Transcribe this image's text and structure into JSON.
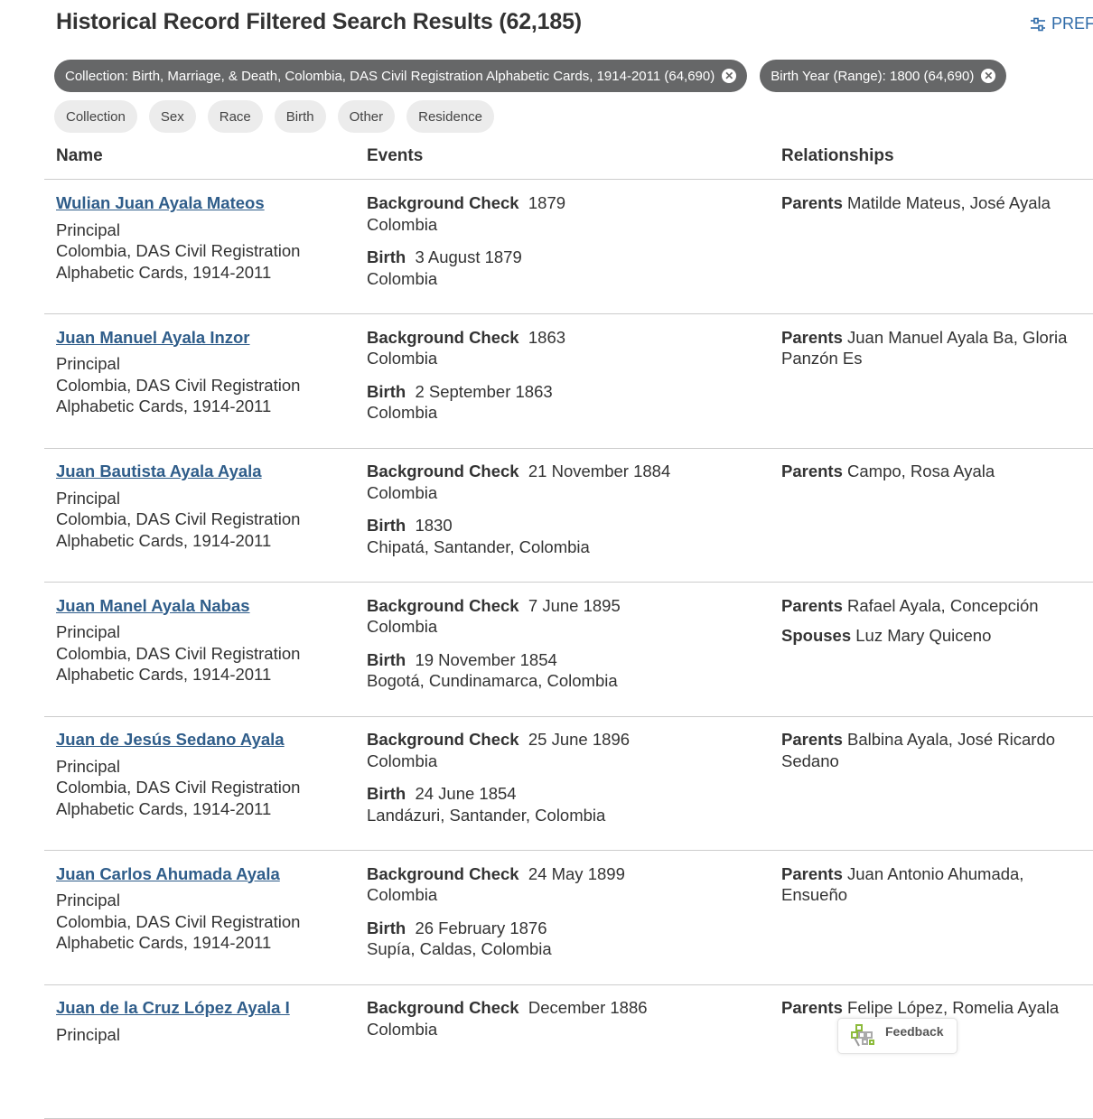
{
  "header": {
    "title": "Historical Record Filtered Search Results (62,185)",
    "prefs_label": "PREFI"
  },
  "active_filters": [
    {
      "label": "Collection: Birth, Marriage, & Death, Colombia, DAS Civil Registration Alphabetic Cards, 1914-2011 (64,690)"
    },
    {
      "label": "Birth Year (Range): 1800 (64,690)"
    }
  ],
  "filter_buttons": [
    "Collection",
    "Sex",
    "Race",
    "Birth",
    "Other",
    "Residence"
  ],
  "columns": {
    "name": "Name",
    "events": "Events",
    "relationships": "Relationships"
  },
  "results": [
    {
      "name": "Wulian Juan Ayala Mateos",
      "role": "Principal",
      "collection": "Colombia, DAS Civil Registration Alphabetic Cards, 1914-2011",
      "events": [
        {
          "type": "Background Check",
          "date": "1879",
          "place": "Colombia"
        },
        {
          "type": "Birth",
          "date": "3 August 1879",
          "place": "Colombia"
        }
      ],
      "relationships": [
        {
          "type": "Parents",
          "names": "Matilde Mateus, José Ayala"
        }
      ]
    },
    {
      "name": "Juan Manuel Ayala Inzor",
      "role": "Principal",
      "collection": "Colombia, DAS Civil Registration Alphabetic Cards, 1914-2011",
      "events": [
        {
          "type": "Background Check",
          "date": "1863",
          "place": "Colombia"
        },
        {
          "type": "Birth",
          "date": "2 September 1863",
          "place": "Colombia"
        }
      ],
      "relationships": [
        {
          "type": "Parents",
          "names": "Juan Manuel Ayala Ba, Gloria Panzón Es"
        }
      ]
    },
    {
      "name": "Juan Bautista Ayala Ayala",
      "role": "Principal",
      "collection": "Colombia, DAS Civil Registration Alphabetic Cards, 1914-2011",
      "events": [
        {
          "type": "Background Check",
          "date": "21 November 1884",
          "place": "Colombia"
        },
        {
          "type": "Birth",
          "date": "1830",
          "place": "Chipatá, Santander, Colombia"
        }
      ],
      "relationships": [
        {
          "type": "Parents",
          "names": "Campo, Rosa Ayala"
        }
      ]
    },
    {
      "name": "Juan Manel Ayala Nabas",
      "role": "Principal",
      "collection": "Colombia, DAS Civil Registration Alphabetic Cards, 1914-2011",
      "events": [
        {
          "type": "Background Check",
          "date": "7 June 1895",
          "place": "Colombia"
        },
        {
          "type": "Birth",
          "date": "19 November 1854",
          "place": "Bogotá, Cundinamarca, Colombia"
        }
      ],
      "relationships": [
        {
          "type": "Parents",
          "names": "Rafael Ayala, Concepción"
        },
        {
          "type": "Spouses",
          "names": "Luz Mary Quiceno"
        }
      ]
    },
    {
      "name": "Juan de Jesús Sedano Ayala",
      "role": "Principal",
      "collection": "Colombia, DAS Civil Registration Alphabetic Cards, 1914-2011",
      "events": [
        {
          "type": "Background Check",
          "date": "25 June 1896",
          "place": "Colombia"
        },
        {
          "type": "Birth",
          "date": "24 June 1854",
          "place": "Landázuri, Santander, Colombia"
        }
      ],
      "relationships": [
        {
          "type": "Parents",
          "names": "Balbina Ayala, José Ricardo Sedano"
        }
      ]
    },
    {
      "name": "Juan Carlos Ahumada Ayala",
      "role": "Principal",
      "collection": "Colombia, DAS Civil Registration Alphabetic Cards, 1914-2011",
      "events": [
        {
          "type": "Background Check",
          "date": "24 May 1899",
          "place": "Colombia"
        },
        {
          "type": "Birth",
          "date": "26 February 1876",
          "place": "Supía, Caldas, Colombia"
        }
      ],
      "relationships": [
        {
          "type": "Parents",
          "names": "Juan Antonio Ahumada, Ensueño"
        }
      ]
    },
    {
      "name": "Juan de la Cruz López Ayala I",
      "role": "Principal",
      "collection": "",
      "events": [
        {
          "type": "Background Check",
          "date": "December 1886",
          "place": "Colombia"
        }
      ],
      "relationships": [
        {
          "type": "Parents",
          "names": "Felipe López, Romelia Ayala"
        }
      ]
    }
  ],
  "feedback": {
    "label": "Feedback",
    "icon": "family-tree-icon"
  },
  "colors": {
    "link": "#2f5d8a",
    "chip": "#666768",
    "accent": "#2f6ba8"
  }
}
